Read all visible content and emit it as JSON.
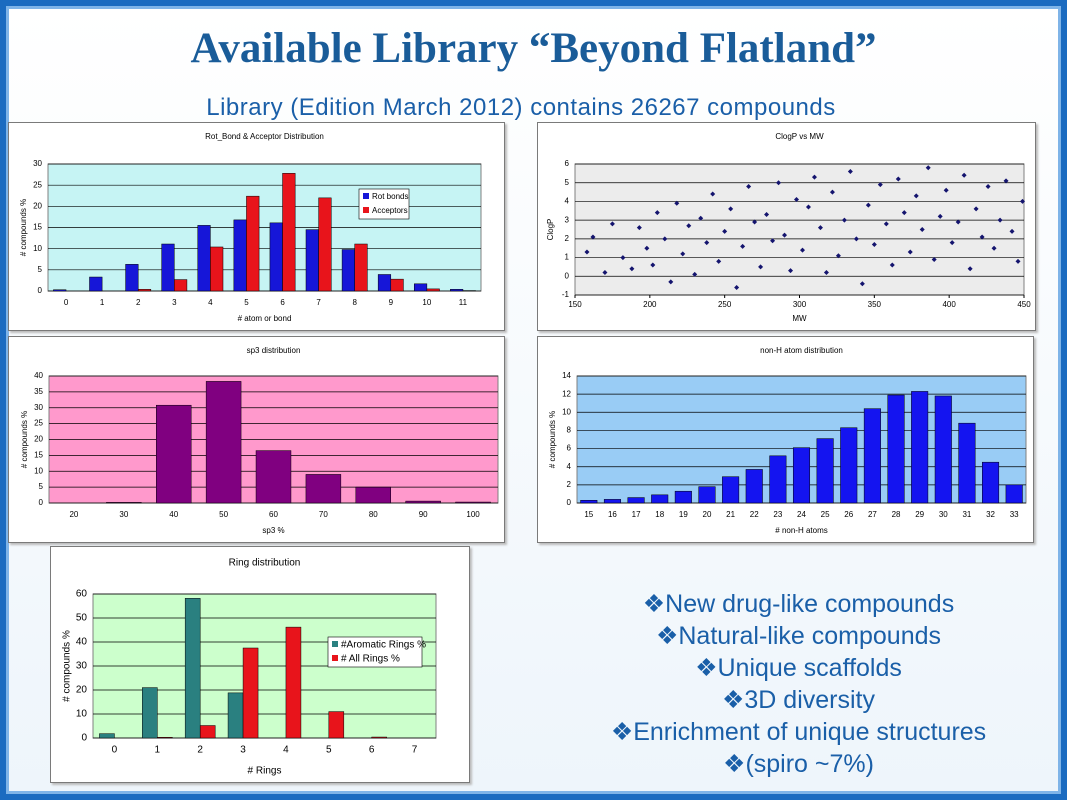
{
  "title": "Available Library “Beyond Flatland”",
  "subtitle": "Library (Edition March 2012) contains 26267 compounds",
  "bullets": [
    "❖New drug-like compounds",
    "❖Natural-like compounds",
    "❖Unique scaffolds",
    "❖3D diversity",
    "❖Enrichment of unique structures",
    "❖(spiro ~7%)"
  ],
  "chart_data": [
    {
      "type": "bar",
      "title": "Rot_Bond & Acceptor Distribution",
      "x_label": "# atom or bond",
      "y_label": "# compounds %",
      "categories": [
        "0",
        "1",
        "2",
        "3",
        "4",
        "5",
        "6",
        "7",
        "8",
        "9",
        "10",
        "11"
      ],
      "series": [
        {
          "name": "Rot bonds",
          "color": "#1616d8",
          "values": [
            0.3,
            3.3,
            6.3,
            11.1,
            15.5,
            16.8,
            16.1,
            14.5,
            9.8,
            3.9,
            1.7,
            0.4
          ]
        },
        {
          "name": "Acceptors",
          "color": "#e8141b",
          "values": [
            0,
            0,
            0.4,
            2.7,
            10.4,
            22.4,
            27.8,
            22,
            11.1,
            2.8,
            0.5,
            0.1
          ]
        }
      ],
      "ylim": [
        0,
        30
      ],
      "yticks": [
        0,
        5,
        10,
        15,
        20,
        25,
        30
      ],
      "grid": true,
      "background": "#c6f4f4",
      "legend": "right"
    },
    {
      "type": "scatter",
      "title": "ClogP vs MW",
      "x_label": "MW",
      "y_label": "ClogP",
      "color": "#14146e",
      "x": [
        158,
        162,
        170,
        175,
        182,
        188,
        193,
        198,
        202,
        205,
        210,
        214,
        218,
        222,
        226,
        230,
        234,
        238,
        242,
        246,
        250,
        254,
        258,
        262,
        266,
        270,
        274,
        278,
        282,
        286,
        290,
        294,
        298,
        302,
        306,
        310,
        314,
        318,
        322,
        326,
        330,
        334,
        338,
        342,
        346,
        350,
        354,
        358,
        362,
        366,
        370,
        374,
        378,
        382,
        386,
        390,
        394,
        398,
        402,
        406,
        410,
        414,
        418,
        422,
        426,
        430,
        434,
        438,
        442,
        446,
        449
      ],
      "y": [
        1.3,
        2.1,
        0.2,
        2.8,
        1.0,
        0.4,
        2.6,
        1.5,
        0.6,
        3.4,
        2.0,
        -0.3,
        3.9,
        1.2,
        2.7,
        0.1,
        3.1,
        1.8,
        4.4,
        0.8,
        2.4,
        3.6,
        -0.6,
        1.6,
        4.8,
        2.9,
        0.5,
        3.3,
        1.9,
        5.0,
        2.2,
        0.3,
        4.1,
        1.4,
        3.7,
        5.3,
        2.6,
        0.2,
        4.5,
        1.1,
        3.0,
        5.6,
        2.0,
        -0.4,
        3.8,
        1.7,
        4.9,
        2.8,
        0.6,
        5.2,
        3.4,
        1.3,
        4.3,
        2.5,
        5.8,
        0.9,
        3.2,
        4.6,
        1.8,
        2.9,
        5.4,
        0.4,
        3.6,
        2.1,
        4.8,
        1.5,
        3.0,
        5.1,
        2.4,
        0.8,
        4.0
      ],
      "xlim": [
        150,
        450
      ],
      "xticks": [
        150,
        200,
        250,
        300,
        350,
        400,
        450
      ],
      "ylim": [
        -1,
        6
      ],
      "yticks": [
        -1,
        0,
        1,
        2,
        3,
        4,
        5,
        6
      ],
      "grid": true,
      "background": "#ececec"
    },
    {
      "type": "bar",
      "title": "sp3 distribution",
      "x_label": "sp3 %",
      "y_label": "# compounds %",
      "categories": [
        "20",
        "30",
        "40",
        "50",
        "60",
        "70",
        "80",
        "90",
        "100"
      ],
      "values": [
        0,
        0.2,
        30.8,
        38.3,
        16.5,
        9,
        5,
        0.6,
        0.3
      ],
      "color": "#800080",
      "ylim": [
        0,
        40
      ],
      "yticks": [
        0,
        5,
        10,
        15,
        20,
        25,
        30,
        35,
        40
      ],
      "grid": true,
      "background": "#ff99cc"
    },
    {
      "type": "bar",
      "title": "non-H atom distribution",
      "x_label": "# non-H atoms",
      "y_label": "# compounds %",
      "categories": [
        "15",
        "16",
        "17",
        "18",
        "19",
        "20",
        "21",
        "22",
        "23",
        "24",
        "25",
        "26",
        "27",
        "28",
        "29",
        "30",
        "31",
        "32",
        "33"
      ],
      "values": [
        0.3,
        0.4,
        0.6,
        0.9,
        1.3,
        1.8,
        2.9,
        3.7,
        5.2,
        6.1,
        7.1,
        8.3,
        10.4,
        11.9,
        12.3,
        11.8,
        8.8,
        4.5,
        2.0
      ],
      "color": "#1414f0",
      "ylim": [
        0,
        14
      ],
      "yticks": [
        0,
        2,
        4,
        6,
        8,
        10,
        12,
        14
      ],
      "grid": true,
      "background": "#99ccf5"
    },
    {
      "type": "bar",
      "title": "Ring distribution",
      "x_label": "# Rings",
      "y_label": "# compounds %",
      "categories": [
        "0",
        "1",
        "2",
        "3",
        "4",
        "5",
        "6",
        "7"
      ],
      "series": [
        {
          "name": "#Aromatic Rings %",
          "color": "#2a8080",
          "values": [
            1.8,
            21,
            58.2,
            18.8,
            0,
            0,
            0,
            0
          ]
        },
        {
          "name": "# All Rings %",
          "color": "#e8141b",
          "values": [
            0,
            0.3,
            5.2,
            37.5,
            46.2,
            11,
            0.4,
            0
          ]
        }
      ],
      "ylim": [
        0,
        60
      ],
      "yticks": [
        0,
        10,
        20,
        30,
        40,
        50,
        60
      ],
      "grid": true,
      "background": "#ccffcc",
      "legend": "right"
    }
  ]
}
